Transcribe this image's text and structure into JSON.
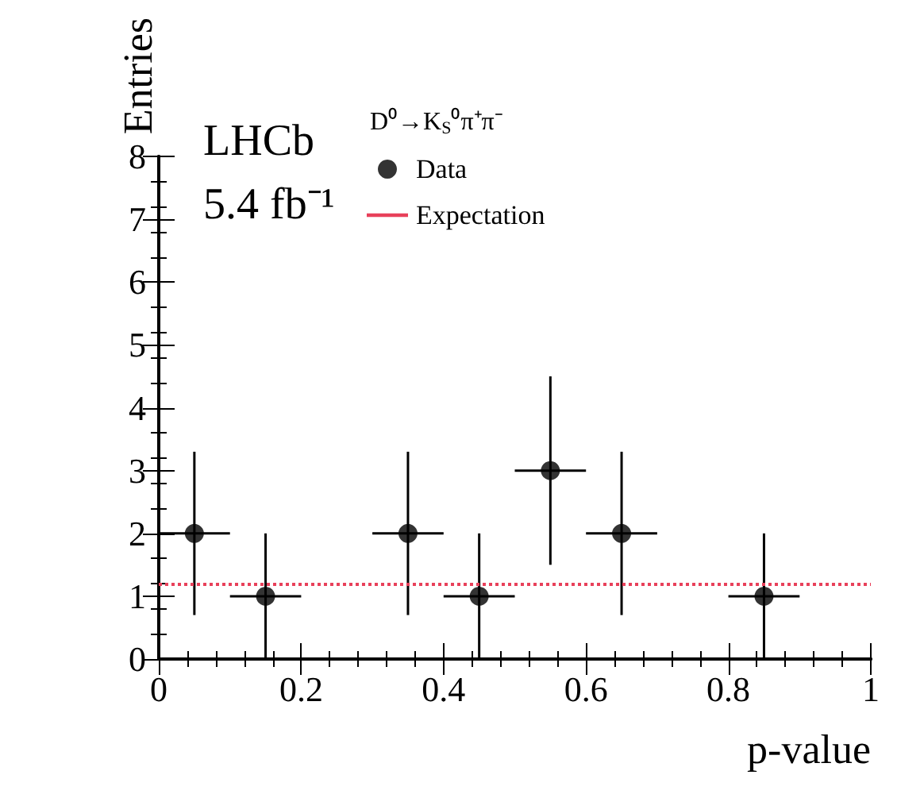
{
  "chart_data": {
    "type": "scatter",
    "xlabel": "p-value",
    "ylabel": "Entries",
    "legend_title": "D⁰→K$_{S}$⁰π⁺π⁻",
    "annotations": [
      "LHCb",
      "5.4 fb⁻¹"
    ],
    "x": [
      0.05,
      0.15,
      0.35,
      0.45,
      0.55,
      0.65,
      0.85
    ],
    "series": [
      {
        "name": "Data",
        "color": "#000000",
        "values": [
          2,
          1,
          2,
          1,
          3,
          2,
          1
        ],
        "errors": [
          [
            0.7,
            3.3
          ],
          [
            0,
            2
          ],
          [
            0.7,
            3.3
          ],
          [
            0,
            2
          ],
          [
            1.5,
            4.5
          ],
          [
            0.7,
            3.3
          ],
          [
            0,
            2
          ]
        ],
        "xerrors": [
          0.05,
          0.05,
          0.05,
          0.05,
          0.05,
          0.05,
          0.05
        ]
      }
    ],
    "ref_lines": [
      {
        "axis": "y",
        "value": 1.2,
        "label": "Expectation",
        "color": "#e8405a",
        "line_style": "dotted"
      }
    ],
    "xlim": [
      0,
      1
    ],
    "xticks": [
      0,
      0.2,
      0.4,
      0.6,
      0.8,
      1
    ],
    "ylim": [
      0,
      8
    ],
    "yticks": [
      0,
      1,
      2,
      3,
      4,
      5,
      6,
      7,
      8
    ],
    "grid": false,
    "legend": "top",
    "marker": "circle"
  }
}
